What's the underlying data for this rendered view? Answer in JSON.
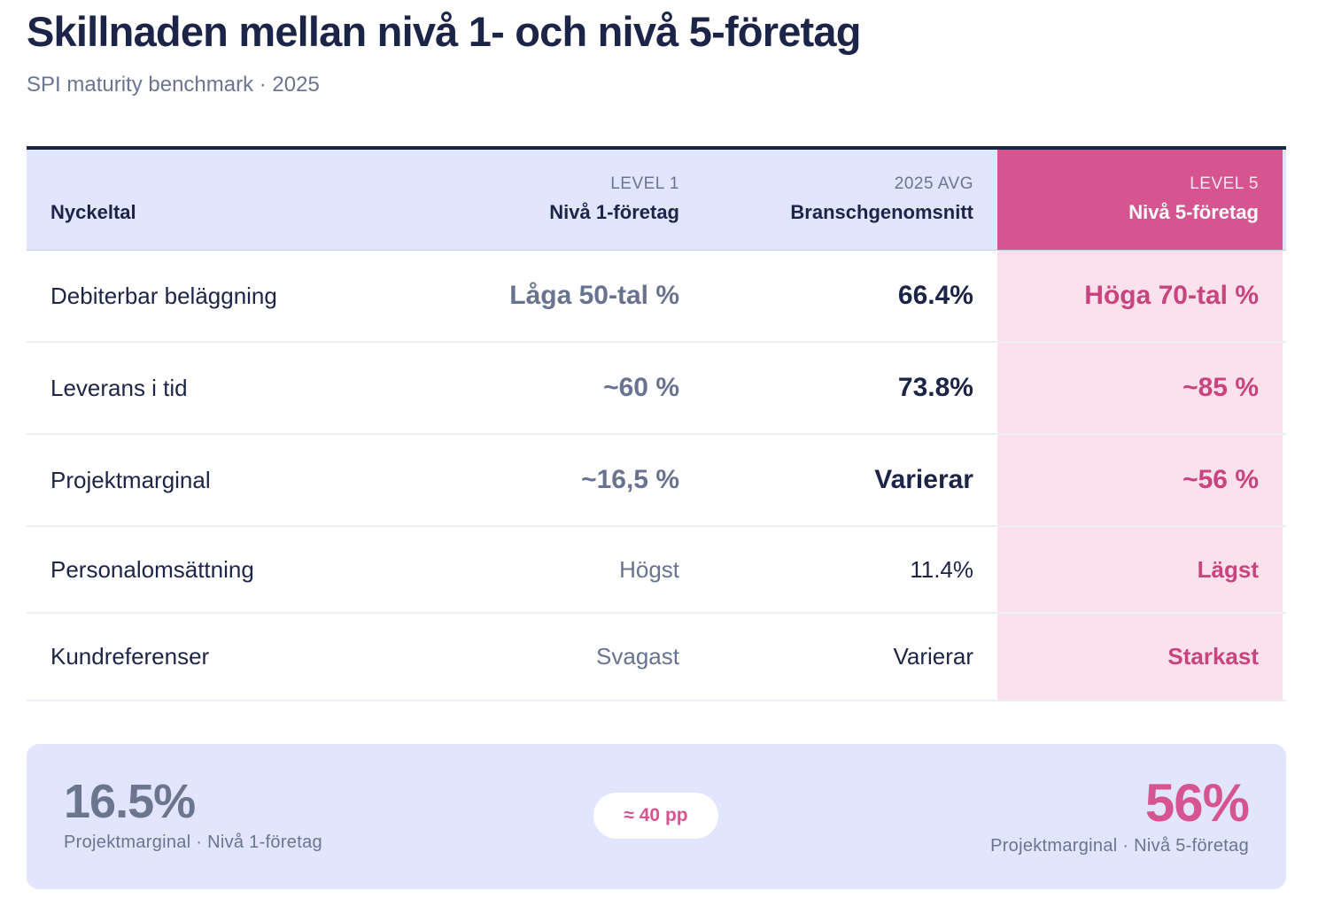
{
  "title": "Skillnaden mellan nivå 1- och nivå 5-företag",
  "subtitle": "SPI maturity benchmark · 2025",
  "colors": {
    "navy": "#1c2447",
    "slate": "#6b7590",
    "pink": "#d65590",
    "pink_light": "#fbe1ec",
    "lavender": "#e1e5fd"
  },
  "table": {
    "headers": {
      "metric": "Nyckeltal",
      "level1_tag": "LEVEL 1",
      "level1_label": "Nivå 1-företag",
      "avg_tag": "2025 AVG",
      "avg_label": "Branschgenomsnitt",
      "level5_tag": "LEVEL 5",
      "level5_label": "Nivå 5-företag"
    },
    "rows": [
      {
        "metric": "Debiterbar beläggning",
        "level1": "Låga 50-tal %",
        "avg": "66.4%",
        "level5": "Höga 70-tal %"
      },
      {
        "metric": "Leverans i tid",
        "level1": "~60 %",
        "avg": "73.8%",
        "level5": "~85 %"
      },
      {
        "metric": "Projektmarginal",
        "level1": "~16,5 %",
        "avg": "Varierar",
        "level5": "~56 %"
      },
      {
        "metric": "Personalomsättning",
        "level1": "Högst",
        "avg": "11.4%",
        "level5": "Lägst"
      },
      {
        "metric": "Kundreferenser",
        "level1": "Svagast",
        "avg": "Varierar",
        "level5": "Starkast"
      }
    ]
  },
  "summary": {
    "left_value": "16.5%",
    "left_caption": "Projektmarginal · Nivå 1-företag",
    "gap": "≈ 40 pp",
    "right_value": "56%",
    "right_caption": "Projektmarginal · Nivå 5-företag"
  }
}
